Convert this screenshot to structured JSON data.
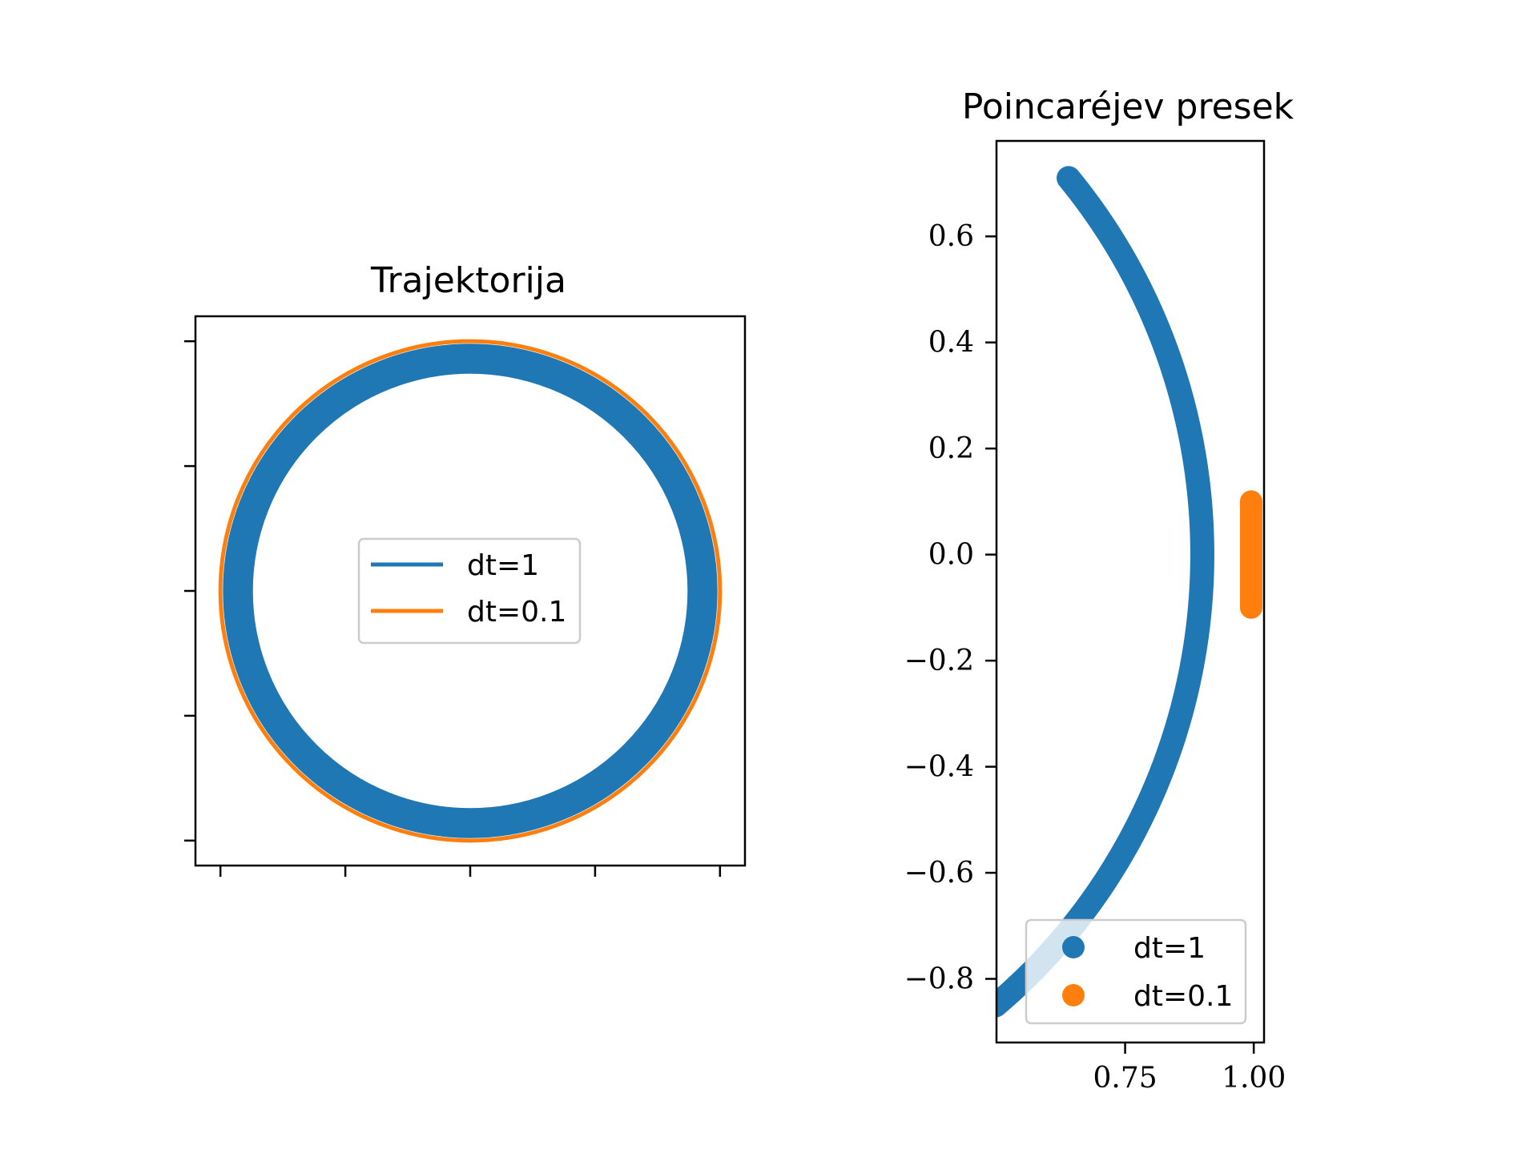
{
  "chart_data": [
    {
      "type": "line",
      "title": "Trajektorija",
      "xlabel": "",
      "ylabel": "",
      "xlim": [
        -1.1,
        1.1
      ],
      "ylim": [
        -1.1,
        1.1
      ],
      "grid": false,
      "legend": {
        "placement": "center"
      },
      "series": [
        {
          "name": "dt=1",
          "color": "#1f77b4",
          "shape": "ring",
          "r_inner": 0.87,
          "r_outer": 0.99
        },
        {
          "name": "dt=0.1",
          "color": "#ff7f0e",
          "shape": "circle",
          "r": 1.0
        }
      ]
    },
    {
      "type": "scatter",
      "title": "Poincaréjev presek",
      "xlabel": "",
      "ylabel": "",
      "xlim": [
        0.5,
        1.02
      ],
      "ylim": [
        -0.92,
        0.78
      ],
      "xticks": [
        0.75,
        1.0
      ],
      "xtick_labels": [
        "0.75",
        "1.00"
      ],
      "yticks": [
        0.6,
        0.4,
        0.2,
        0.0,
        -0.2,
        -0.4,
        -0.6,
        -0.8
      ],
      "ytick_labels": [
        "0.6",
        "0.4",
        "0.2",
        "0.0",
        "−0.2",
        "−0.4",
        "−0.6",
        "−0.8"
      ],
      "grid": false,
      "legend": {
        "placement": "lower-right"
      },
      "series": [
        {
          "name": "dt=1",
          "color": "#1f77b4",
          "shape": "arc",
          "r": 1.1,
          "y_range": [
            -0.85,
            0.71
          ]
        },
        {
          "name": "dt=0.1",
          "color": "#ff7f0e",
          "shape": "segment",
          "x": 0.995,
          "y_range": [
            -0.1,
            0.1
          ]
        }
      ]
    }
  ]
}
